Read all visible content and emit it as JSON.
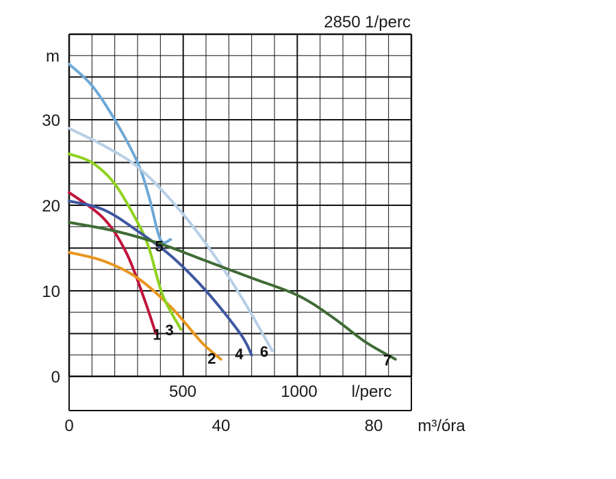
{
  "chart_data": {
    "type": "line",
    "title": "2850 1/perc",
    "ylabel": "m",
    "xlabel_lpm": "l/perc",
    "xlabel_m3h": "m³/óra",
    "ylim": [
      0,
      38
    ],
    "xlim_lpm": [
      0,
      1500
    ],
    "y_ticks": [
      "0",
      "10",
      "20",
      "30"
    ],
    "x_ticks_lpm": [
      "500",
      "1000"
    ],
    "x_ticks_m3h": [
      "0",
      "40",
      "80"
    ],
    "grid": true,
    "series": [
      {
        "name": "1",
        "color": "#c0143c",
        "points": [
          [
            0,
            21.5
          ],
          [
            150,
            18.5
          ],
          [
            250,
            14.5
          ],
          [
            330,
            9
          ],
          [
            380,
            5
          ]
        ]
      },
      {
        "name": "2",
        "color": "#e8961e",
        "points": [
          [
            0,
            14.5
          ],
          [
            150,
            13.5
          ],
          [
            300,
            11.5
          ],
          [
            450,
            8
          ],
          [
            580,
            4
          ],
          [
            665,
            2
          ]
        ]
      },
      {
        "name": "3",
        "color": "#8fd11e",
        "points": [
          [
            0,
            26
          ],
          [
            100,
            25
          ],
          [
            200,
            22.5
          ],
          [
            300,
            18
          ],
          [
            350,
            15
          ],
          [
            410,
            9.5
          ],
          [
            490,
            5.5
          ]
        ]
      },
      {
        "name": "4",
        "color": "#3e57a0",
        "points": [
          [
            0,
            20.5
          ],
          [
            150,
            19.5
          ],
          [
            300,
            17
          ],
          [
            450,
            14
          ],
          [
            600,
            10
          ],
          [
            750,
            5
          ],
          [
            800,
            2.5
          ]
        ]
      },
      {
        "name": "5",
        "color": "#6ea8d6",
        "points": [
          [
            0,
            36.5
          ],
          [
            100,
            34
          ],
          [
            200,
            30
          ],
          [
            300,
            25
          ],
          [
            350,
            21
          ],
          [
            400,
            16
          ],
          [
            445,
            16
          ]
        ]
      },
      {
        "name": "6",
        "color": "#b7cfe6",
        "points": [
          [
            0,
            29
          ],
          [
            150,
            27
          ],
          [
            300,
            24.5
          ],
          [
            450,
            20.5
          ],
          [
            600,
            15.5
          ],
          [
            750,
            9.5
          ],
          [
            890,
            3
          ]
        ]
      },
      {
        "name": "7",
        "color": "#3f6b35",
        "points": [
          [
            0,
            18
          ],
          [
            200,
            17
          ],
          [
            400,
            15.5
          ],
          [
            600,
            13.5
          ],
          [
            800,
            11.5
          ],
          [
            1000,
            9.5
          ],
          [
            1150,
            7
          ],
          [
            1300,
            4
          ],
          [
            1430,
            2
          ]
        ]
      }
    ],
    "curve_labels": [
      {
        "text": "1",
        "x": 385,
        "y": 4.3
      },
      {
        "text": "2",
        "x": 625,
        "y": 1.5
      },
      {
        "text": "3",
        "x": 440,
        "y": 4.8
      },
      {
        "text": "4",
        "x": 745,
        "y": 2.0
      },
      {
        "text": "5",
        "x": 395,
        "y": 14.6
      },
      {
        "text": "6",
        "x": 855,
        "y": 2.3
      },
      {
        "text": "7",
        "x": 1395,
        "y": 1.3
      }
    ]
  }
}
